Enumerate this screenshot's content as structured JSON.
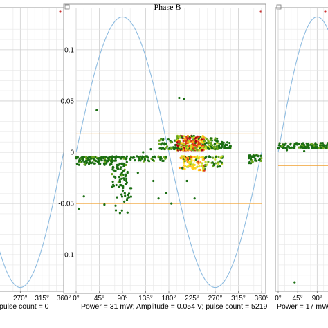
{
  "chart_data": [
    {
      "type": "scatter",
      "panel": "left",
      "title": "",
      "x_unit": "°",
      "x_ticks_visible": [
        270,
        315,
        360
      ],
      "xlim": [
        0,
        360
      ],
      "ylim": [
        -0.135,
        0.135
      ],
      "grid": true,
      "footer": "pulse count = 0",
      "sine": {
        "amplitude": 0.132,
        "color": "#8dbbe0"
      },
      "points": []
    },
    {
      "type": "scatter",
      "panel": "center",
      "title": "Phase B",
      "x_unit": "°",
      "x_ticks": [
        0,
        45,
        90,
        135,
        180,
        225,
        270,
        315,
        360
      ],
      "y_ticks": [
        0.1,
        0.05,
        0,
        -0.05,
        -0.1
      ],
      "y_tick_labels": [
        "0.1",
        "0.05",
        "0",
        "-0.05",
        "-0.1"
      ],
      "xlim": [
        0,
        360
      ],
      "ylim": [
        -0.135,
        0.135
      ],
      "grid": true,
      "threshold_lines": [
        0.018,
        -0.05
      ],
      "threshold_color": "#f0a030",
      "footer": "Power = 31 mW; Amplitude = 0.054 V; pulse count = 5219",
      "sine": {
        "amplitude": 0.132,
        "color": "#8dbbe0"
      },
      "colors": [
        "#1a6e12",
        "#6aa61e",
        "#c9dd28",
        "#ffd21a",
        "#ff9a1a",
        "#d93a1a",
        "#b00010"
      ],
      "clusters": [
        {
          "x": [
            0,
            68
          ],
          "y": [
            -0.0045,
            -0.0125
          ],
          "n": 120,
          "weights": [
            0.85,
            0.15,
            0,
            0,
            0,
            0,
            0
          ]
        },
        {
          "x": [
            68,
            100
          ],
          "y": [
            -0.004,
            -0.035
          ],
          "n": 90,
          "weights": [
            0.9,
            0.1,
            0,
            0,
            0,
            0,
            0
          ]
        },
        {
          "x": [
            75,
            110
          ],
          "y": [
            -0.035,
            -0.06
          ],
          "n": 20,
          "weights": [
            1,
            0,
            0,
            0,
            0,
            0,
            0
          ]
        },
        {
          "x": [
            100,
            175
          ],
          "y": [
            -0.004,
            -0.009
          ],
          "n": 50,
          "weights": [
            0.8,
            0.2,
            0,
            0,
            0,
            0,
            0
          ]
        },
        {
          "x": [
            160,
            200
          ],
          "y": [
            0.003,
            0.013
          ],
          "n": 60,
          "weights": [
            0.75,
            0.25,
            0,
            0,
            0,
            0,
            0
          ]
        },
        {
          "x": [
            195,
            250
          ],
          "y": [
            0.002,
            0.016
          ],
          "n": 260,
          "weights": [
            0.05,
            0.1,
            0.15,
            0.2,
            0.15,
            0.2,
            0.15
          ]
        },
        {
          "x": [
            250,
            275
          ],
          "y": [
            0.003,
            0.014
          ],
          "n": 70,
          "weights": [
            0.25,
            0.5,
            0.25,
            0,
            0,
            0,
            0
          ]
        },
        {
          "x": [
            275,
            300
          ],
          "y": [
            0.004,
            0.01
          ],
          "n": 30,
          "weights": [
            0.9,
            0.1,
            0,
            0,
            0,
            0,
            0
          ]
        },
        {
          "x": [
            200,
            250
          ],
          "y": [
            -0.004,
            -0.018
          ],
          "n": 90,
          "weights": [
            0.1,
            0.1,
            0.2,
            0.3,
            0.2,
            0.1,
            0
          ]
        },
        {
          "x": [
            250,
            285
          ],
          "y": [
            -0.004,
            -0.015
          ],
          "n": 40,
          "weights": [
            0.4,
            0.4,
            0.2,
            0,
            0,
            0,
            0
          ]
        },
        {
          "x": [
            335,
            360
          ],
          "y": [
            -0.003,
            -0.011
          ],
          "n": 40,
          "weights": [
            0.9,
            0.1,
            0,
            0,
            0,
            0,
            0
          ]
        }
      ],
      "outliers": [
        [
          40,
          0.041
        ],
        [
          55,
          -0.051
        ],
        [
          5,
          -0.055
        ],
        [
          15,
          -0.043
        ],
        [
          145,
          0.003
        ],
        [
          150,
          -0.028
        ],
        [
          160,
          -0.045
        ],
        [
          175,
          -0.04
        ],
        [
          185,
          -0.05
        ],
        [
          200,
          0.053
        ],
        [
          210,
          0.052
        ],
        [
          215,
          -0.028
        ],
        [
          230,
          -0.045
        ],
        [
          300,
          0.006
        ],
        [
          130,
          0.0
        ],
        [
          120,
          -0.02
        ]
      ]
    },
    {
      "type": "scatter",
      "panel": "right",
      "title": "",
      "x_unit": "°",
      "x_ticks_visible": [
        0,
        45,
        90
      ],
      "xlim": [
        0,
        360
      ],
      "ylim": [
        -0.135,
        0.135
      ],
      "grid": true,
      "threshold_lines": [
        0.009,
        -0.013
      ],
      "threshold_color": "#f0a030",
      "footer": "Power = 17 mW",
      "sine": {
        "amplitude": 0.132,
        "color": "#8dbbe0"
      },
      "colors": [
        "#1a6e12",
        "#6aa61e"
      ],
      "clusters": [
        {
          "x": [
            0,
            120
          ],
          "y": [
            0.004,
            0.009
          ],
          "n": 120,
          "weights": [
            0.85,
            0.15
          ]
        }
      ],
      "outliers": [
        [
          38,
          -0.127
        ],
        [
          20,
          0.002
        ],
        [
          60,
          0.001
        ]
      ]
    }
  ]
}
